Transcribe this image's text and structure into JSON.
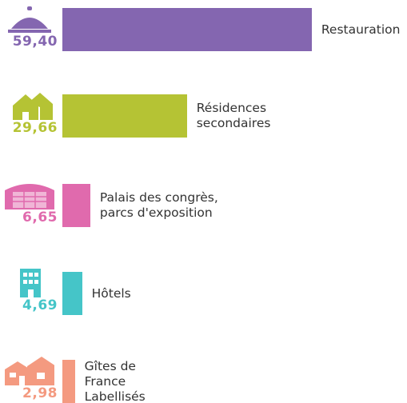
{
  "chart_data": {
    "type": "bar",
    "categories": [
      "Restauration",
      "Résidences\nsecondaires",
      "Palais des congrès,\nparcs d'exposition",
      "Hôtels",
      "Gîtes de\nFrance\nLabellisés"
    ],
    "values": [
      59.4,
      29.66,
      6.65,
      4.69,
      2.98
    ],
    "value_labels": [
      "59,40",
      "29,66",
      "6,65",
      "4,69",
      "2,98"
    ],
    "colors": [
      "#8466b0",
      "#b5c334",
      "#e06aad",
      "#45c5c8",
      "#f49a80"
    ]
  }
}
